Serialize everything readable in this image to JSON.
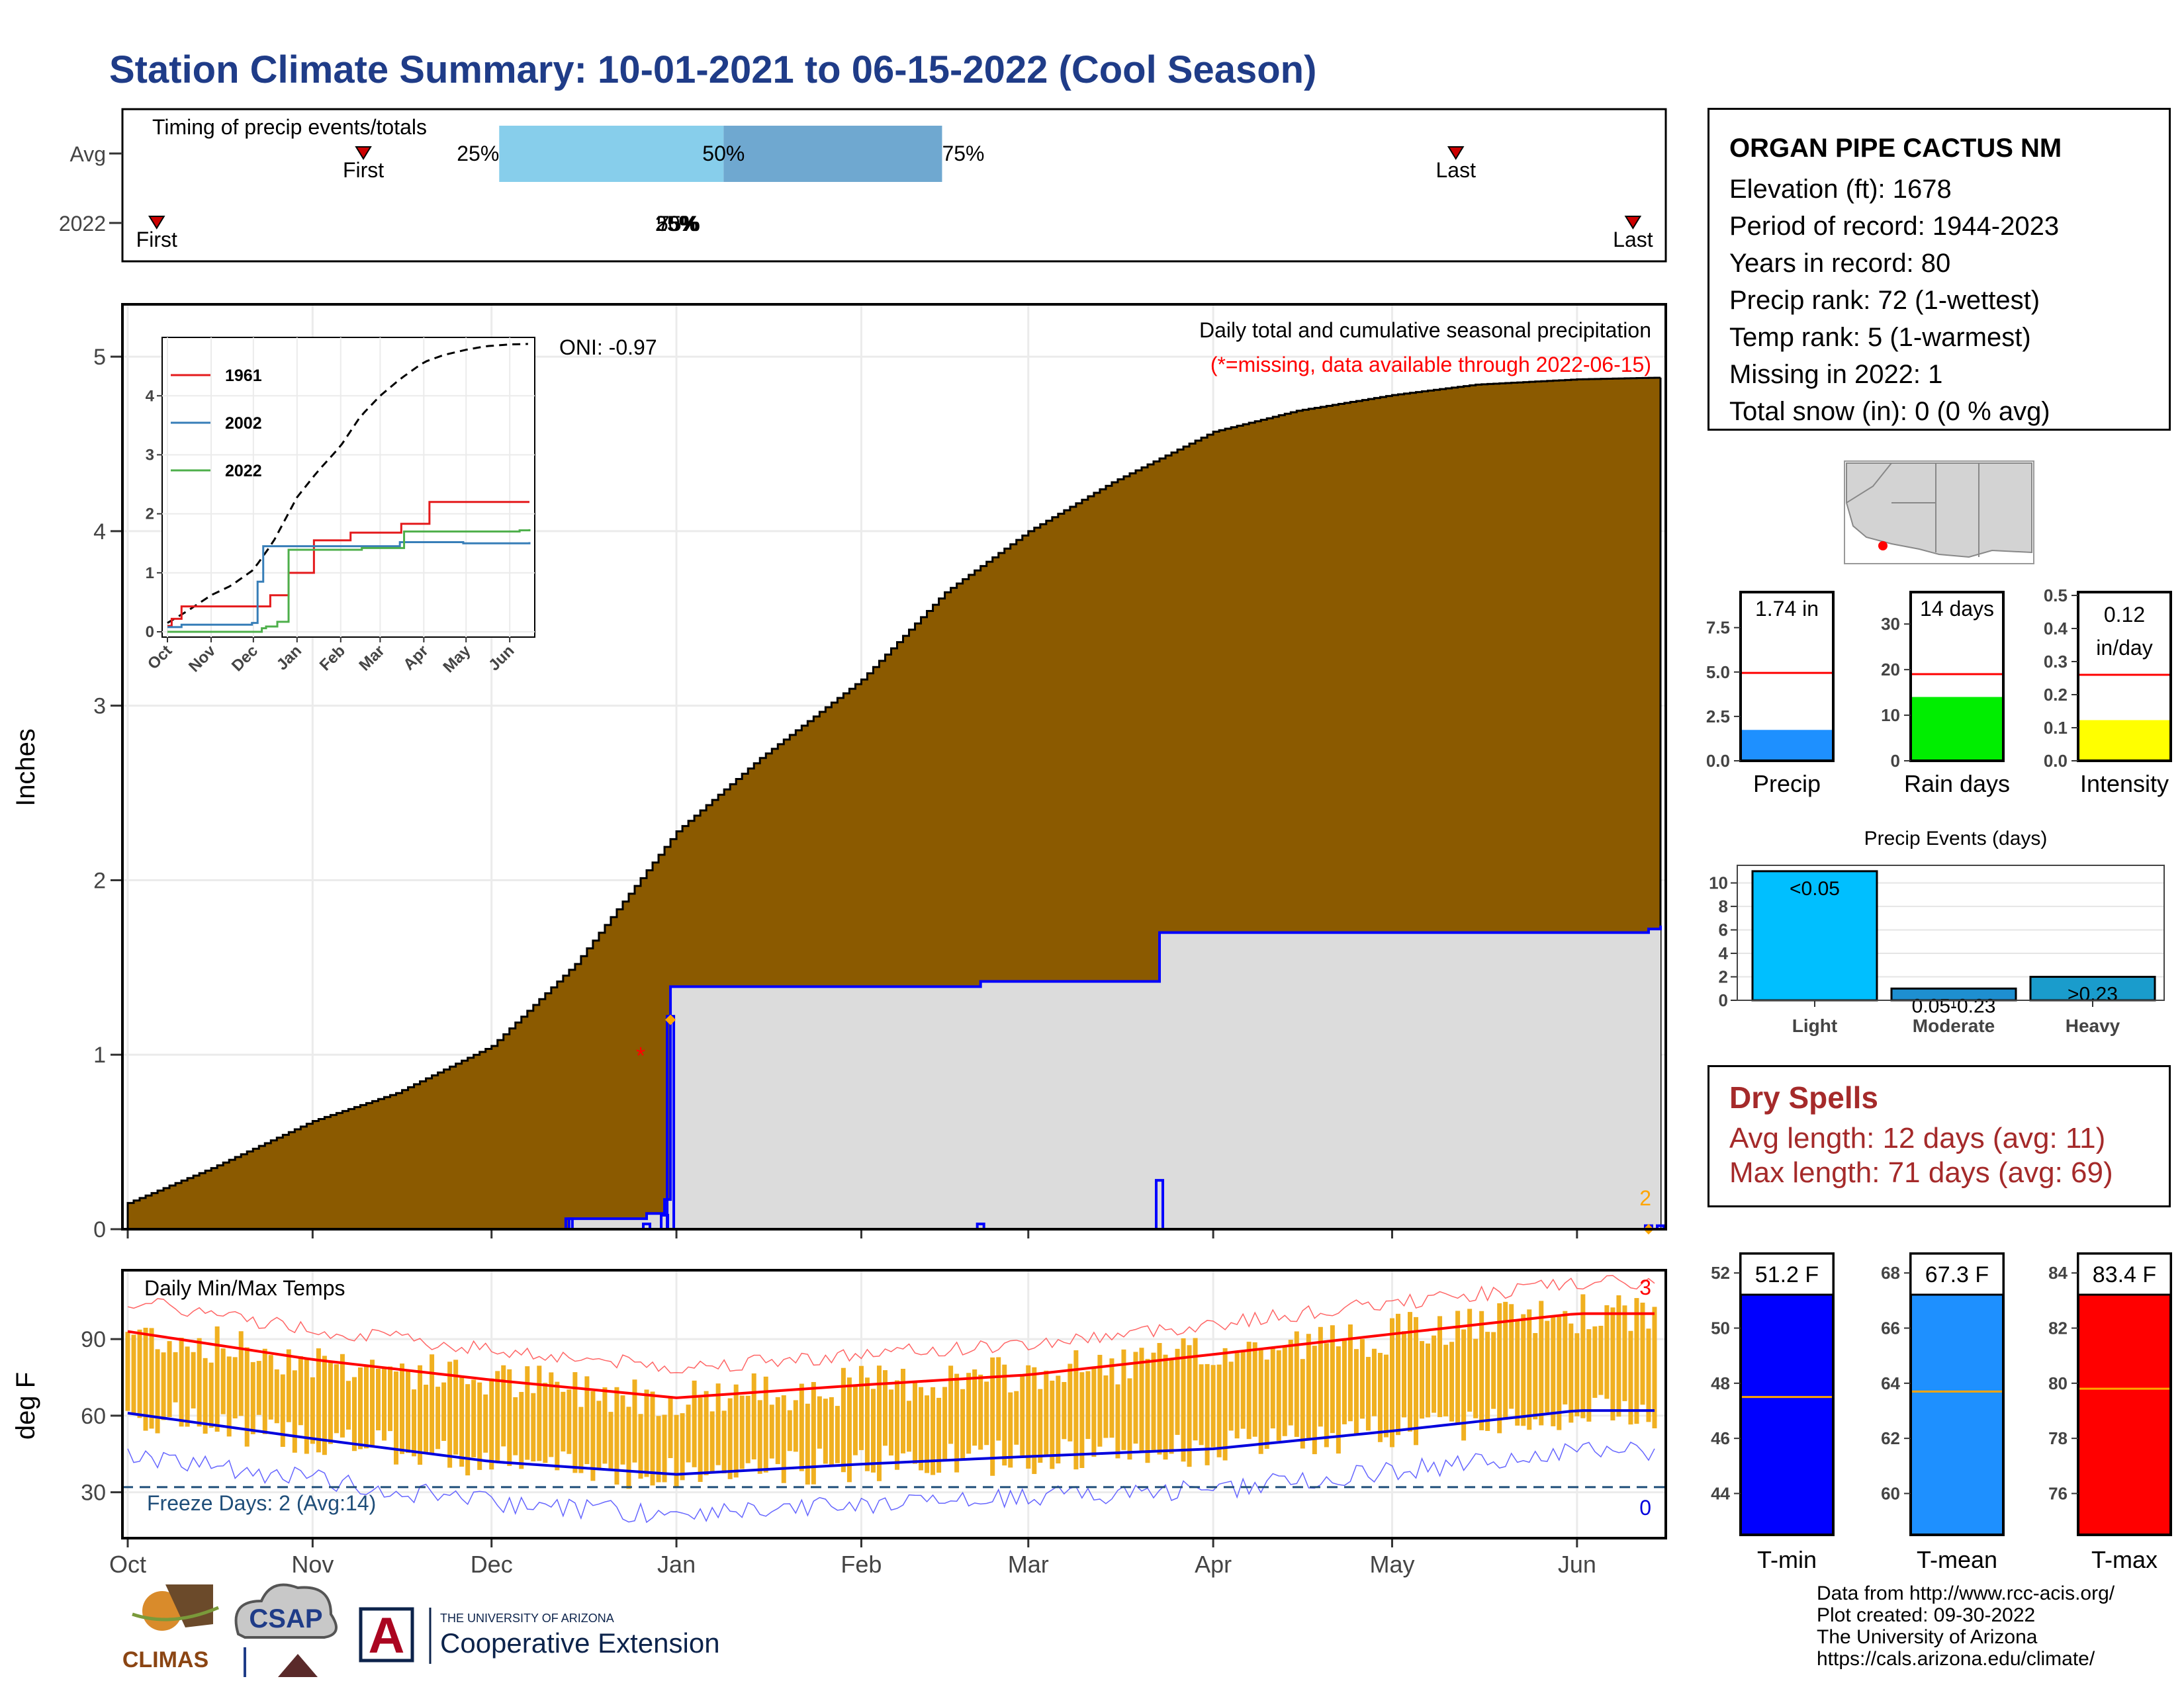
{
  "title": "Station Climate Summary: 10-01-2021 to 06-15-2022 (Cool Season)",
  "timing": {
    "title": "Timing of precip events/totals",
    "rows": [
      "Avg",
      "2022"
    ],
    "avg_labels": {
      "first": "First",
      "last": "Last",
      "p25": "25%",
      "p50": "50%",
      "p75": "75%"
    },
    "y2022_labels": {
      "first": "First",
      "last": "Last",
      "overlap": "50%",
      "overlap2": "25%",
      "overlap3": "75%"
    },
    "avg_first_date": "2021-11-08",
    "avg_last_date": "2022-05-12",
    "avg_p25_date": "2021-12-01",
    "avg_p50_date": "2022-01-08",
    "avg_p75_date": "2022-02-14",
    "y2022_first_date": "2021-10-04",
    "y2022_last_date": "2022-06-11",
    "y2022_pct_date": "2021-12-31",
    "colors": {
      "bar_light": "#87ceeb",
      "bar_dark": "#6fa8d0",
      "marker": "#cc0000"
    }
  },
  "main_chart": {
    "ylabel": "Inches",
    "yticks": [
      0,
      1,
      2,
      3,
      4,
      5
    ],
    "ylim": [
      0,
      5.3
    ],
    "xticks": [
      "Oct",
      "Nov",
      "Dec",
      "Jan",
      "Feb",
      "Mar",
      "Apr",
      "May",
      "Jun"
    ],
    "note_title": "Daily total and cumulative seasonal precipitation",
    "note_missing": "(*=missing, data available through 2022-06-15)",
    "oni": "ONI: -0.97",
    "missing_marker": "*",
    "missing_count_label": "2",
    "colors": {
      "avg_fill": "#8b5a00",
      "obs_fill": "#dcdcdc",
      "obs_line": "#0000ff",
      "missing": "#ff0000",
      "orange": "#ffa500"
    }
  },
  "inset": {
    "legend": [
      "1961",
      "2002",
      "2022"
    ],
    "legend_colors": [
      "#e41a1c",
      "#377eb8",
      "#4daf4a"
    ],
    "yticks": [
      "0",
      "1",
      "2",
      "3",
      "4"
    ],
    "xticks": [
      "Oct",
      "Nov",
      "Dec",
      "Jan",
      "Feb",
      "Mar",
      "Apr",
      "May",
      "Jun"
    ]
  },
  "temp_chart": {
    "title": "Daily Min/Max Temps",
    "ylabel": "deg F",
    "yticks": [
      "30",
      "60",
      "90"
    ],
    "xticks": [
      "Oct",
      "Nov",
      "Dec",
      "Jan",
      "Feb",
      "Mar",
      "Apr",
      "May",
      "Jun"
    ],
    "freeze_label": "Freeze Days: 2 (Avg:14)",
    "max_count": "3",
    "min_count": "0",
    "colors": {
      "bars": "#f0b020",
      "max_avg": "#ff0000",
      "min_avg": "#0000dd",
      "freeze": "#1f4e79"
    }
  },
  "station": {
    "name": "ORGAN PIPE CACTUS NM",
    "lines": [
      "Elevation (ft): 1678",
      "Period of record: 1944-2023",
      "Years in record: 80",
      "Precip rank: 72 (1-wettest)",
      "Temp rank: 5 (1-warmest)",
      "Missing in 2022: 1",
      "Total snow (in): 0 (0 % avg)"
    ]
  },
  "mini_bars": [
    {
      "label": "Precip",
      "value_label": "1.74 in",
      "value": 1.74,
      "avg": 4.95,
      "ymax": 9.5,
      "ticks": [
        "0.0",
        "2.5",
        "5.0",
        "7.5"
      ],
      "tick_values": [
        0,
        2.5,
        5,
        7.5
      ],
      "color": "#1e90ff"
    },
    {
      "label": "Rain days",
      "value_label": "14 days",
      "value": 14,
      "avg": 19,
      "ymax": 37,
      "ticks": [
        "0",
        "10",
        "20",
        "30"
      ],
      "tick_values": [
        0,
        10,
        20,
        30
      ],
      "color": "#00ee00"
    },
    {
      "label": "Intensity",
      "value_label_1": "0.12",
      "value_label_2": "in/day",
      "value": 0.123,
      "avg": 0.26,
      "ymax": 0.51,
      "ticks": [
        "0.0",
        "0.1",
        "0.2",
        "0.3",
        "0.4",
        "0.5"
      ],
      "tick_values": [
        0,
        0.1,
        0.2,
        0.3,
        0.4,
        0.5
      ],
      "color": "#ffff00"
    }
  ],
  "precip_events": {
    "title": "Precip Events (days)",
    "categories": [
      "Light",
      "Moderate",
      "Heavy"
    ],
    "values": [
      11,
      1,
      2
    ],
    "bar_labels": [
      "<0.05",
      "0.05-0.23",
      ">0.23"
    ],
    "yticks": [
      "0",
      "2",
      "4",
      "6",
      "8",
      "10"
    ],
    "colors": [
      "#00bfff",
      "#1e8fd0",
      "#1a9ccc"
    ]
  },
  "dry_spells": {
    "title": "Dry Spells",
    "avg_length": "Avg length: 12 days (avg: 11)",
    "max_length": "Max length: 71 days (avg: 69)"
  },
  "temp_bars": [
    {
      "label": "T-min",
      "value_label": "51.2 F",
      "value": 51.2,
      "avg": 47.5,
      "ymin": 42.5,
      "ymax": 52.7,
      "ticks": [
        "44",
        "46",
        "48",
        "50",
        "52"
      ],
      "tick_values": [
        44,
        46,
        48,
        50,
        52
      ],
      "color": "#0000ff"
    },
    {
      "label": "T-mean",
      "value_label": "67.3 F",
      "value": 67.3,
      "avg": 63.7,
      "ymin": 58.5,
      "ymax": 68.7,
      "ticks": [
        "60",
        "62",
        "64",
        "66",
        "68"
      ],
      "tick_values": [
        60,
        62,
        64,
        66,
        68
      ],
      "color": "#1e90ff"
    },
    {
      "label": "T-max",
      "value_label": "83.4 F",
      "value": 83.4,
      "avg": 79.8,
      "ymin": 74.5,
      "ymax": 84.7,
      "ticks": [
        "76",
        "78",
        "80",
        "82",
        "84"
      ],
      "tick_values": [
        76,
        78,
        80,
        82,
        84
      ],
      "color": "#ff0000"
    }
  ],
  "credits": [
    "Data from http://www.rcc-acis.org/",
    "Plot created: 09-30-2022",
    "The University of Arizona",
    "https://cals.arizona.edu/climate/"
  ],
  "logos": {
    "climas": "CLIMAS",
    "csap": "CSAP",
    "ua_small": "THE UNIVERSITY OF ARIZONA",
    "ua_big": "Cooperative Extension",
    "ua_letter": "A"
  },
  "chart_data": [
    {
      "type": "area",
      "title": "Daily total and cumulative seasonal precipitation",
      "ylabel": "Inches",
      "ylim": [
        0,
        5.3
      ],
      "series": [
        {
          "name": "",
          "x": [
            "2021-10-01",
            "2021-10-15",
            "2021-11-01",
            "2021-11-15",
            "2021-12-01",
            "2021-12-15",
            "2022-01-01",
            "2022-01-15",
            "2022-02-01",
            "2022-02-15",
            "2022-03-01",
            "2022-03-15",
            "2022-04-01",
            "2022-04-15",
            "2022-05-01",
            "2022-05-15",
            "2022-06-01",
            "2022-06-15"
          ],
          "values": [
            0.15,
            0.35,
            0.62,
            0.78,
            1.05,
            1.52,
            2.28,
            2.7,
            3.15,
            3.65,
            4.0,
            4.28,
            4.57,
            4.69,
            4.78,
            4.84,
            4.87,
            4.88
          ]
        },
        {
          "name": "",
          "x": [
            "2021-10-01",
            "2021-12-13",
            "2021-12-14",
            "2021-12-27",
            "2021-12-30",
            "2021-12-31",
            "2022-02-14",
            "2022-02-21",
            "2022-03-23",
            "2022-06-13",
            "2022-06-15"
          ],
          "values": [
            0.0,
            0.0,
            0.06,
            0.09,
            0.17,
            1.39,
            1.39,
            1.42,
            1.7,
            1.72,
            1.74
          ]
        }
      ]
    },
    {
      "type": "bar",
      "title": "Precip Events (days)",
      "categories": [
        "Light",
        "Moderate",
        "Heavy"
      ],
      "values": [
        11,
        1,
        2
      ],
      "ylim": [
        0,
        11.5
      ]
    },
    {
      "type": "line",
      "title": "Daily Min/Max Temps",
      "ylabel": "deg F",
      "ylim": [
        12,
        117
      ],
      "series": [
        {
          "name": "",
          "x": [
            "Oct",
            "Nov",
            "Dec",
            "Jan",
            "Feb",
            "Mar",
            "Apr",
            "May",
            "Jun"
          ],
          "values": [
            93,
            82,
            74,
            67,
            72,
            76,
            84,
            92,
            100
          ]
        },
        {
          "name": "",
          "x": [
            "Oct",
            "Nov",
            "Dec",
            "Jan",
            "Feb",
            "Mar",
            "Apr",
            "May",
            "Jun"
          ],
          "values": [
            61,
            51,
            42,
            37,
            41,
            44,
            47,
            54,
            62
          ]
        }
      ]
    }
  ]
}
